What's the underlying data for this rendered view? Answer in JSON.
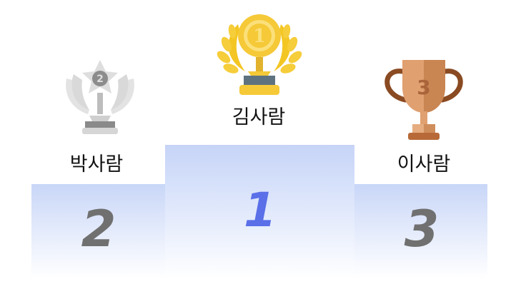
{
  "podium": {
    "first": {
      "name": "김사람",
      "rank": "1",
      "rank_color": "#5a6fe8",
      "trophy": "gold-trophy-icon",
      "medal": "1"
    },
    "second": {
      "name": "박사람",
      "rank": "2",
      "rank_color": "#707070",
      "trophy": "silver-trophy-icon",
      "medal": "2"
    },
    "third": {
      "name": "이사람",
      "rank": "3",
      "rank_color": "#707070",
      "trophy": "bronze-trophy-icon",
      "medal": "3"
    }
  },
  "colors": {
    "gold": "#f5c937",
    "silver": "#d3d3d3",
    "bronze": "#e0a070",
    "podium": "#c8d6f7"
  }
}
